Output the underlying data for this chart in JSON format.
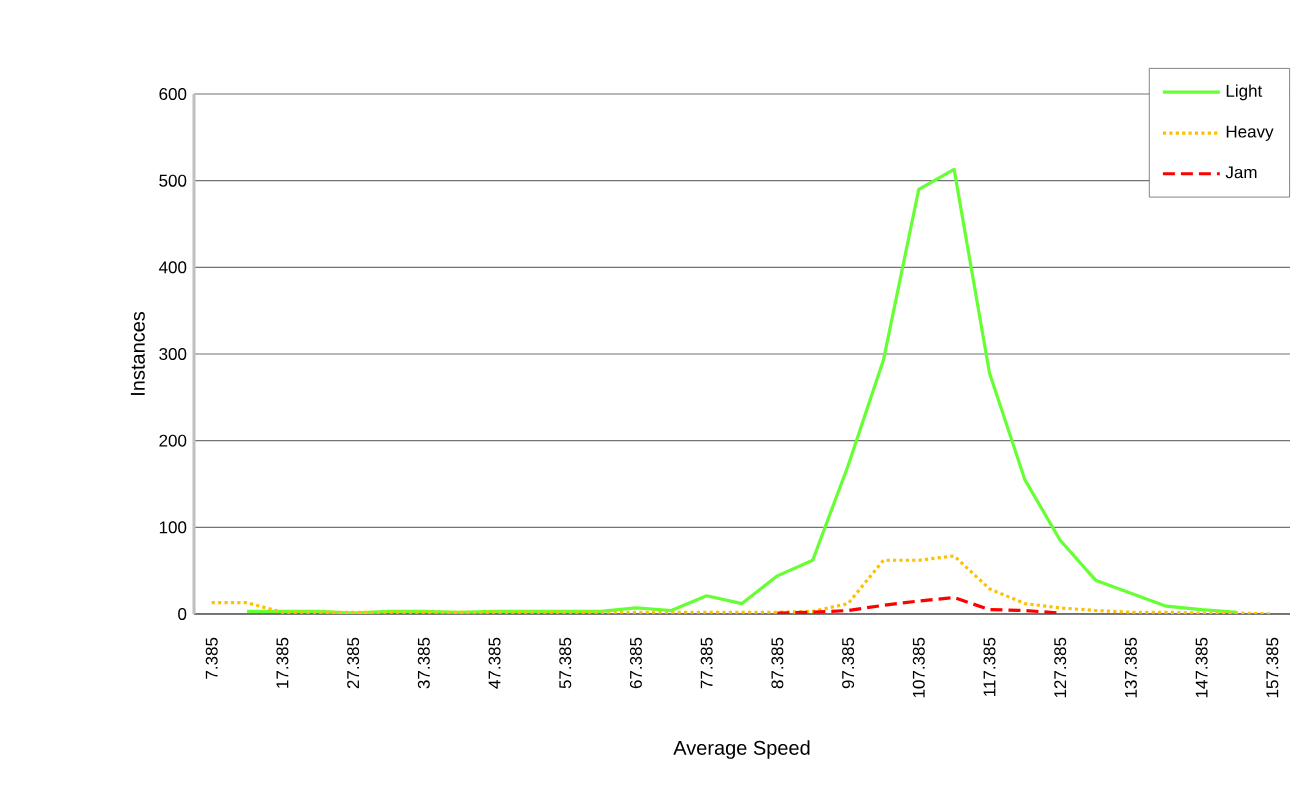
{
  "chart_data": {
    "type": "line",
    "xlabel": "Average Speed",
    "ylabel": "Instances",
    "categories": [
      "7.385",
      null,
      "17.385",
      null,
      "27.385",
      null,
      "37.385",
      null,
      "47.385",
      null,
      "57.385",
      null,
      "67.385",
      null,
      "77.385",
      null,
      "87.385",
      null,
      "97.385",
      null,
      "107.385",
      null,
      "117.385",
      null,
      "127.385",
      null,
      "137.385",
      null,
      "147.385",
      null,
      "157.385"
    ],
    "series": [
      {
        "name": "Light",
        "color": "#66ff33",
        "line_style": "solid",
        "values": [
          null,
          3,
          3,
          3,
          1,
          3,
          3,
          2,
          3,
          3,
          3,
          3,
          7,
          4,
          21,
          12,
          44,
          62,
          171,
          293,
          490,
          513,
          278,
          155,
          85,
          39,
          24,
          9,
          5,
          2,
          null
        ]
      },
      {
        "name": "Heavy",
        "color": "#ffc000",
        "line_style": "dotted",
        "values": [
          13,
          13,
          2,
          2,
          2,
          2,
          2,
          2,
          2,
          2,
          2,
          2,
          2,
          2,
          2,
          2,
          2,
          3,
          12,
          62,
          62,
          67,
          29,
          12,
          7,
          4,
          2,
          2,
          1,
          1,
          0
        ]
      },
      {
        "name": "Jam",
        "color": "#ff0000",
        "line_style": "dashed",
        "values": [
          null,
          null,
          null,
          null,
          null,
          null,
          null,
          null,
          null,
          null,
          null,
          null,
          null,
          null,
          null,
          null,
          1,
          2,
          4,
          10,
          15,
          19,
          5,
          4,
          1,
          null,
          null,
          null,
          null,
          null,
          null
        ]
      }
    ],
    "ylim": [
      0,
      600
    ],
    "yticks": [
      0,
      100,
      200,
      300,
      400,
      500,
      600
    ],
    "grid": "y",
    "legend": "top right",
    "marker": "none"
  }
}
